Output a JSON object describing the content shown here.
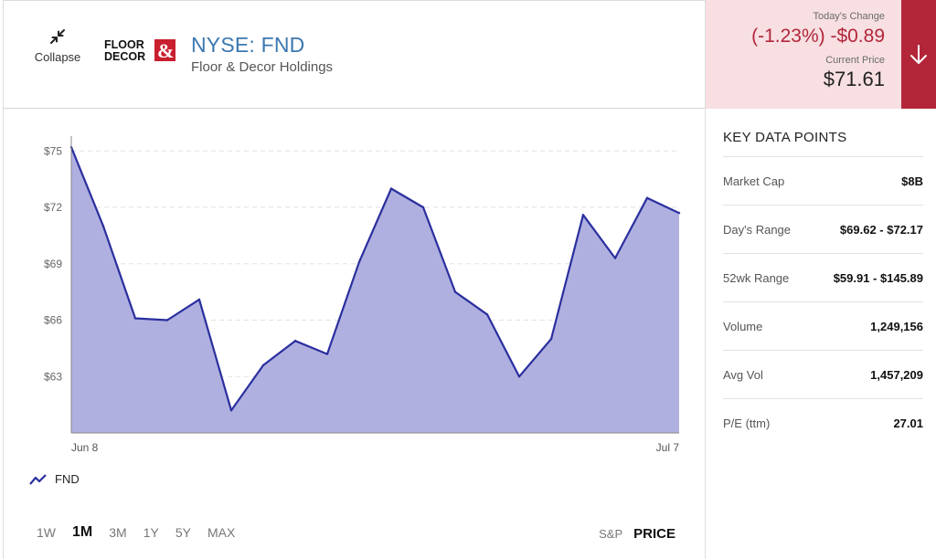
{
  "header": {
    "collapse_label": "Collapse",
    "logo_text_line1": "FLOOR",
    "logo_text_line2": "DECOR",
    "logo_amp": "&",
    "ticker": "NYSE: FND",
    "company": "Floor & Decor Holdings"
  },
  "price": {
    "change_label": "Today's Change",
    "change": "(-1.23%) -$0.89",
    "current_label": "Current Price",
    "current": "$71.61",
    "direction_icon": "arrow-down-icon"
  },
  "colors": {
    "brand_blue": "#3c78b0",
    "negative_red": "#b3263a",
    "negative_bg": "#f7dfe2",
    "series_line": "#2a2f9e",
    "series_fill": "#b0b0e0"
  },
  "chart_data": {
    "type": "area",
    "series": [
      {
        "name": "FND",
        "values": [
          75.2,
          71.0,
          66.1,
          66.0,
          67.1,
          61.2,
          63.6,
          64.9,
          64.2,
          69.1,
          73.0,
          72.0,
          67.5,
          66.3,
          63.0,
          65.0,
          71.6,
          69.3,
          72.5,
          71.7
        ]
      }
    ],
    "x_tick_labels": [
      "Jun 8",
      "Jul 7"
    ],
    "y_ticks": [
      63,
      66,
      69,
      72,
      75
    ],
    "y_tick_labels": [
      "$63",
      "$66",
      "$69",
      "$72",
      "$75"
    ],
    "ylim": [
      60,
      75.5
    ],
    "grid": "horizontal-dashed",
    "legend": "bottom-left"
  },
  "controls": {
    "ranges": [
      "1W",
      "1M",
      "3M",
      "1Y",
      "5Y",
      "MAX"
    ],
    "active_range": "1M",
    "modes": [
      "S&P",
      "PRICE"
    ],
    "active_mode": "PRICE"
  },
  "key_data": {
    "title": "KEY DATA POINTS",
    "rows": [
      {
        "label": "Market Cap",
        "value": "$8B"
      },
      {
        "label": "Day's Range",
        "value": "$69.62 - $72.17"
      },
      {
        "label": "52wk Range",
        "value": "$59.91 - $145.89"
      },
      {
        "label": "Volume",
        "value": "1,249,156"
      },
      {
        "label": "Avg Vol",
        "value": "1,457,209"
      },
      {
        "label": "P/E (ttm)",
        "value": "27.01"
      }
    ]
  }
}
